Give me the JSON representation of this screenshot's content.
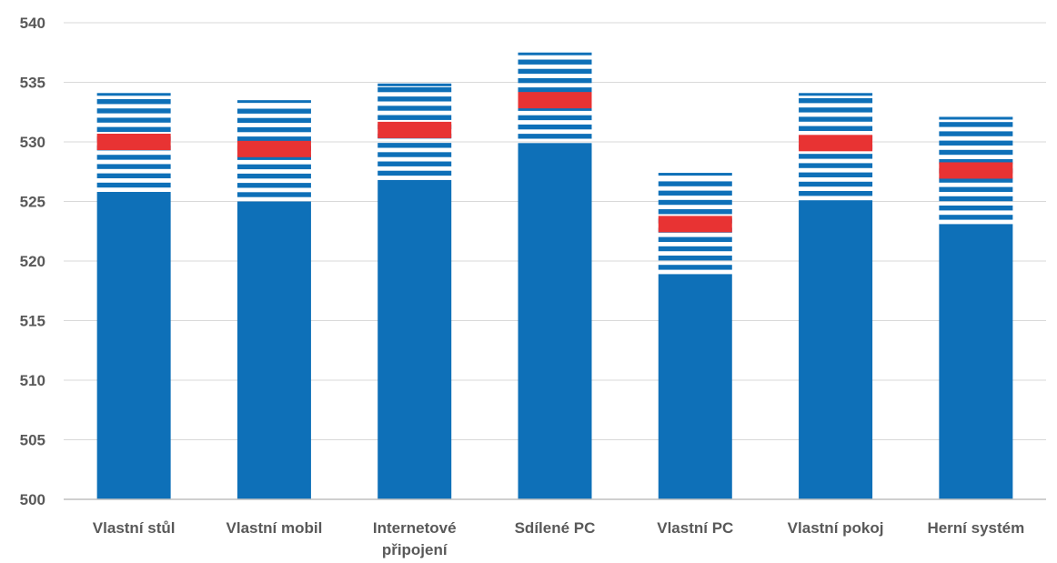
{
  "chart_data": {
    "type": "bar",
    "title": "",
    "xlabel": "",
    "ylabel": "",
    "ylim": [
      500,
      540
    ],
    "yticks": [
      "500",
      "505",
      "510",
      "515",
      "520",
      "525",
      "530",
      "535",
      "540"
    ],
    "grid": true,
    "categories": [
      [
        "Vlastní stůl"
      ],
      [
        "Vlastní mobil"
      ],
      [
        "Internetové",
        "připojení"
      ],
      [
        "Sdílené PC"
      ],
      [
        "Vlastní PC"
      ],
      [
        "Vlastní pokoj"
      ],
      [
        "Herní systém"
      ]
    ],
    "series": [
      {
        "values": [
          525.8,
          525.0,
          526.8,
          529.9,
          518.9,
          525.1,
          523.1
        ]
      },
      {
        "values": [
          534.1,
          533.5,
          534.9,
          537.5,
          527.4,
          534.1,
          532.1
        ]
      },
      {
        "values": [
          530.0,
          529.4,
          531.0,
          533.5,
          523.1,
          529.9,
          527.6
        ]
      }
    ],
    "colors": {
      "bar": "#0e70b8",
      "marker": "#e83333",
      "grid": "#d9d9d9",
      "axis": "#bfbfbf"
    }
  }
}
